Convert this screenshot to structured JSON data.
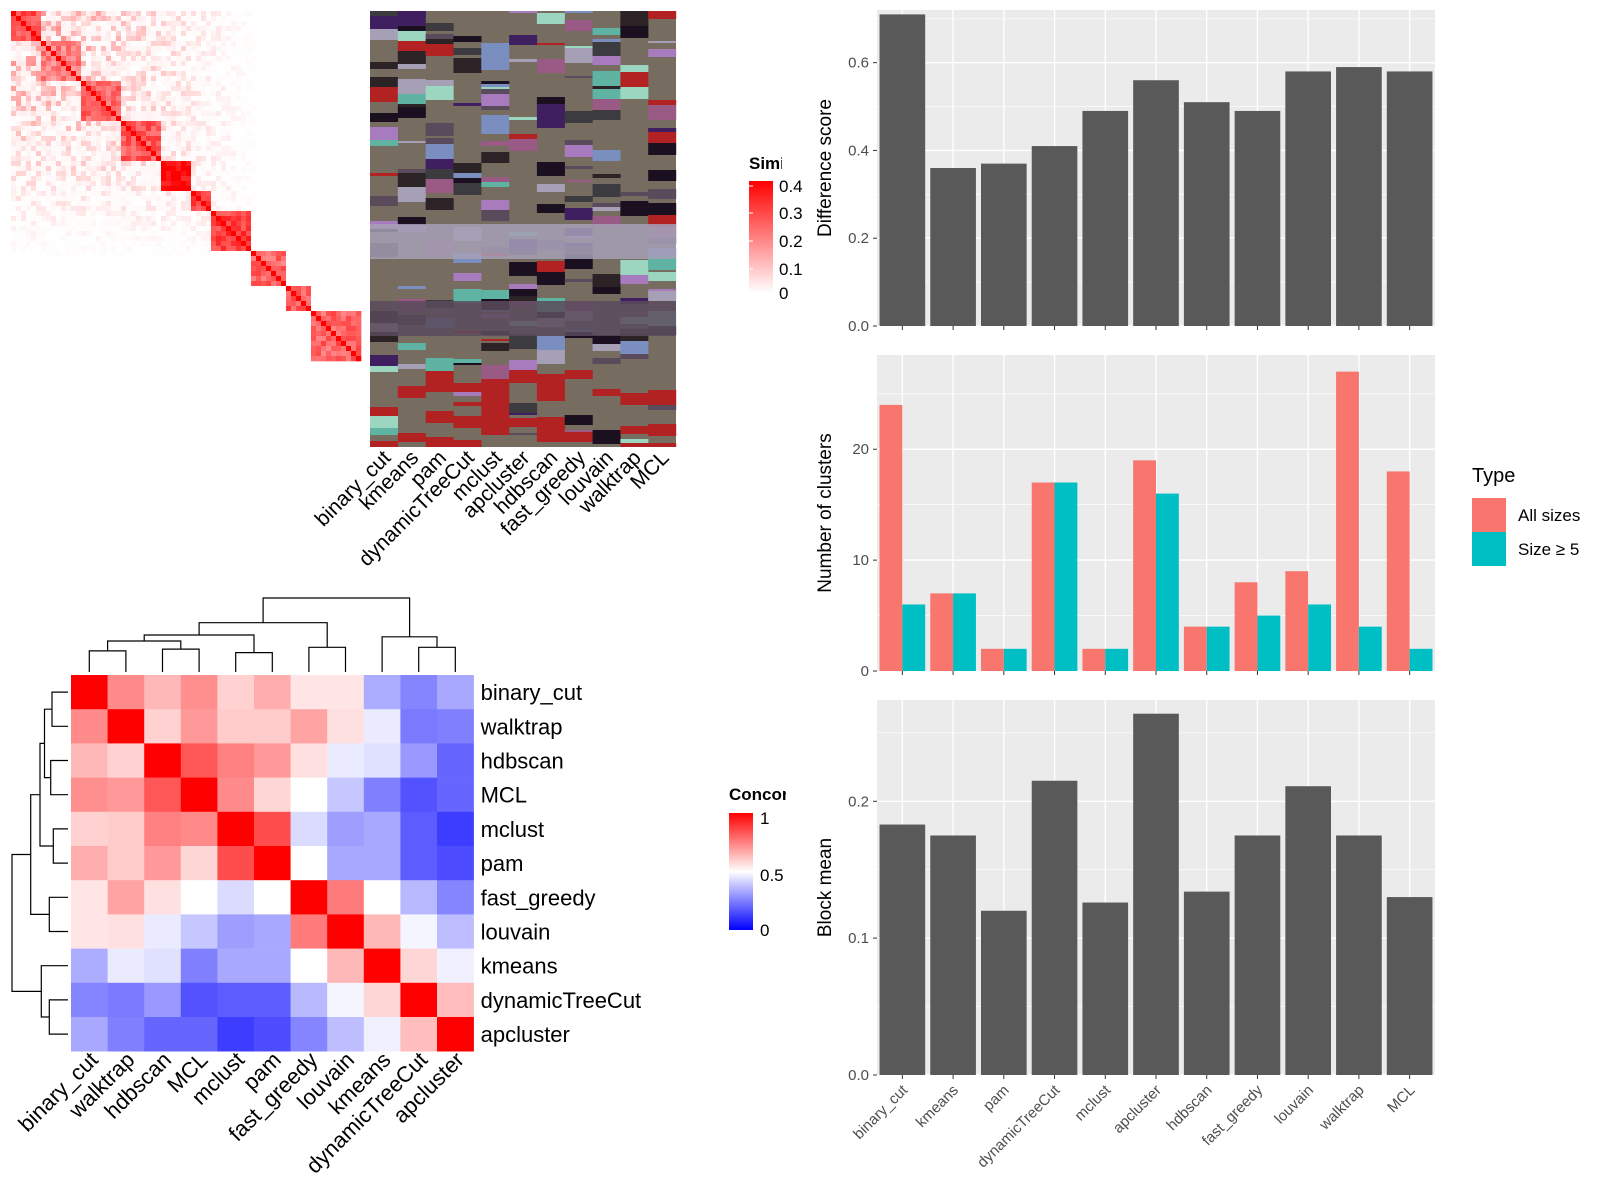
{
  "colors": {
    "panel_bg": "#ebebeb",
    "grid": "#ffffff",
    "bar": "#595959",
    "all_sizes": "#f8766d",
    "size_ge5": "#00bfc4",
    "heat_high": "#ff0000",
    "heat_mid": "#ffffff",
    "heat_low": "#0000ff",
    "matrix_bg": "#766c60",
    "text": "#000000",
    "axis_text": "#4d4d4d"
  },
  "similarity_legend": {
    "title": "Similarity",
    "ticks": [
      "0",
      "0.1",
      "0.2",
      "0.3",
      "0.4"
    ]
  },
  "concordance_legend": {
    "title": "Concordance",
    "ticks": [
      "0",
      "0.5",
      "1"
    ]
  },
  "type_legend": {
    "title": "Type",
    "entries": [
      "All sizes",
      "Size ≥ 5"
    ]
  },
  "class_matrix_labels": [
    "binary_cut",
    "kmeans",
    "pam",
    "dynamicTreeCut",
    "mclust",
    "apcluster",
    "hdbscan",
    "fast_greedy",
    "louvain",
    "walktrap",
    "MCL"
  ],
  "chart_data": [
    {
      "type": "bar",
      "categories": [
        "binary_cut",
        "kmeans",
        "pam",
        "dynamicTreeCut",
        "mclust",
        "apcluster",
        "hdbscan",
        "fast_greedy",
        "louvain",
        "walktrap",
        "MCL"
      ],
      "values": [
        0.71,
        0.36,
        0.37,
        0.41,
        0.49,
        0.56,
        0.51,
        0.49,
        0.58,
        0.59,
        0.58
      ],
      "ylabel": "Difference score",
      "ylim": [
        0,
        0.72
      ],
      "yticks": [
        0.0,
        0.2,
        0.4,
        0.6
      ],
      "ytick_labels": [
        "0.0",
        "0.2",
        "0.4",
        "0.6"
      ],
      "grid": true
    },
    {
      "type": "bar",
      "categories": [
        "binary_cut",
        "kmeans",
        "pam",
        "dynamicTreeCut",
        "mclust",
        "apcluster",
        "hdbscan",
        "fast_greedy",
        "louvain",
        "walktrap",
        "MCL"
      ],
      "series": [
        {
          "name": "All sizes",
          "values": [
            24,
            7,
            2,
            17,
            2,
            19,
            4,
            8,
            9,
            27,
            18
          ]
        },
        {
          "name": "Size ≥ 5",
          "values": [
            6,
            7,
            2,
            17,
            2,
            16,
            4,
            5,
            6,
            4,
            2
          ]
        }
      ],
      "ylabel": "Number of clusters",
      "ylim": [
        0,
        28.5
      ],
      "yticks": [
        0,
        10,
        20
      ],
      "ytick_labels": [
        "0",
        "10",
        "20"
      ],
      "legend": "right",
      "grid": true
    },
    {
      "type": "bar",
      "categories": [
        "binary_cut",
        "kmeans",
        "pam",
        "dynamicTreeCut",
        "mclust",
        "apcluster",
        "hdbscan",
        "fast_greedy",
        "louvain",
        "walktrap",
        "MCL"
      ],
      "values": [
        0.183,
        0.175,
        0.12,
        0.215,
        0.126,
        0.264,
        0.134,
        0.175,
        0.211,
        0.175,
        0.13
      ],
      "ylabel": "Block mean",
      "ylim": [
        0,
        0.274
      ],
      "yticks": [
        0.0,
        0.1,
        0.2
      ],
      "ytick_labels": [
        "0.0",
        "0.1",
        "0.2"
      ],
      "grid": true
    },
    {
      "type": "heatmap",
      "rows": [
        "binary_cut",
        "walktrap",
        "hdbscan",
        "MCL",
        "mclust",
        "pam",
        "fast_greedy",
        "louvain",
        "kmeans",
        "dynamicTreeCut",
        "apcluster"
      ],
      "cols": [
        "binary_cut",
        "walktrap",
        "hdbscan",
        "MCL",
        "mclust",
        "pam",
        "fast_greedy",
        "louvain",
        "kmeans",
        "dynamicTreeCut",
        "apcluster"
      ],
      "values": [
        [
          1.0,
          0.73,
          0.64,
          0.72,
          0.59,
          0.66,
          0.55,
          0.55,
          0.34,
          0.26,
          0.33
        ],
        [
          0.73,
          1.0,
          0.59,
          0.7,
          0.6,
          0.6,
          0.68,
          0.56,
          0.46,
          0.24,
          0.25
        ],
        [
          0.64,
          0.59,
          1.0,
          0.83,
          0.75,
          0.7,
          0.56,
          0.46,
          0.44,
          0.3,
          0.2
        ],
        [
          0.72,
          0.7,
          0.83,
          1.0,
          0.73,
          0.58,
          0.5,
          0.39,
          0.25,
          0.16,
          0.2
        ],
        [
          0.59,
          0.6,
          0.75,
          0.73,
          1.0,
          0.85,
          0.43,
          0.31,
          0.33,
          0.18,
          0.12
        ],
        [
          0.66,
          0.6,
          0.7,
          0.58,
          0.85,
          1.0,
          0.5,
          0.33,
          0.33,
          0.18,
          0.15
        ],
        [
          0.55,
          0.68,
          0.56,
          0.5,
          0.43,
          0.5,
          1.0,
          0.76,
          0.5,
          0.36,
          0.26
        ],
        [
          0.55,
          0.56,
          0.46,
          0.39,
          0.31,
          0.33,
          0.76,
          1.0,
          0.64,
          0.48,
          0.37
        ],
        [
          0.34,
          0.46,
          0.44,
          0.25,
          0.33,
          0.33,
          0.5,
          0.64,
          1.0,
          0.58,
          0.47
        ],
        [
          0.26,
          0.24,
          0.3,
          0.16,
          0.18,
          0.18,
          0.36,
          0.48,
          0.58,
          1.0,
          0.63
        ],
        [
          0.33,
          0.25,
          0.2,
          0.2,
          0.12,
          0.15,
          0.26,
          0.37,
          0.47,
          0.63,
          1.0
        ]
      ],
      "color_range": [
        0,
        1
      ],
      "legend_title": "Concordance"
    }
  ]
}
